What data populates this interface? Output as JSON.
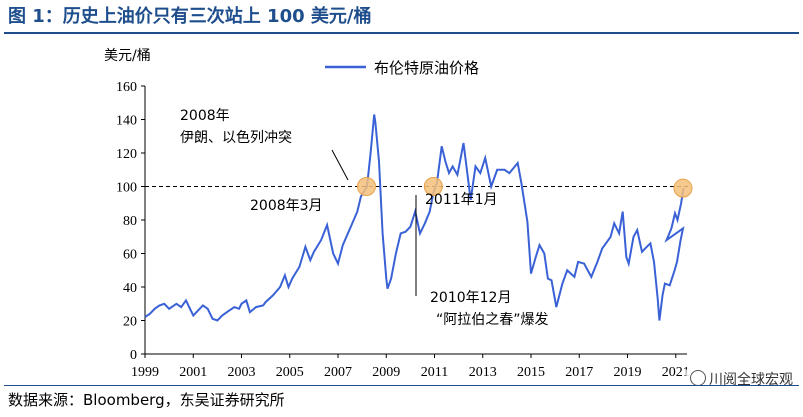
{
  "figure": {
    "title": "图 1：历史上油价只有三次站上 100 美元/桶",
    "source": "数据来源：Bloomberg，东吴证券研究所",
    "watermark": "川阅全球宏观"
  },
  "chart_data": {
    "type": "line",
    "ylabel": "美元/桶",
    "ylim": [
      0,
      160
    ],
    "yticks": [
      0,
      20,
      40,
      60,
      80,
      100,
      120,
      140,
      160
    ],
    "xlim": [
      1999,
      2021.3
    ],
    "xticks": [
      1999,
      2001,
      2003,
      2005,
      2007,
      2009,
      2011,
      2013,
      2015,
      2017,
      2019,
      2021
    ],
    "xtick_labels": [
      "1999",
      "2001",
      "2003",
      "2005",
      "2007",
      "2009",
      "2011",
      "2013",
      "2015",
      "2017",
      "2019",
      "2021"
    ],
    "grid": false,
    "legend": "top-center",
    "reference_line": {
      "y": 100,
      "style": "dashed"
    },
    "series": [
      {
        "name": "布伦特原油价格",
        "color": "#3a62d6",
        "points": [
          [
            1999.0,
            22
          ],
          [
            1999.2,
            24
          ],
          [
            1999.4,
            27
          ],
          [
            1999.6,
            29
          ],
          [
            1999.8,
            30
          ],
          [
            2000.0,
            27
          ],
          [
            2000.3,
            30
          ],
          [
            2000.5,
            28
          ],
          [
            2000.7,
            32
          ],
          [
            2000.9,
            26
          ],
          [
            2001.0,
            23
          ],
          [
            2001.2,
            26
          ],
          [
            2001.4,
            29
          ],
          [
            2001.6,
            27
          ],
          [
            2001.8,
            21
          ],
          [
            2002.0,
            20
          ],
          [
            2002.2,
            23
          ],
          [
            2002.4,
            25
          ],
          [
            2002.7,
            28
          ],
          [
            2002.9,
            27
          ],
          [
            2003.0,
            30
          ],
          [
            2003.2,
            32
          ],
          [
            2003.35,
            25
          ],
          [
            2003.6,
            28
          ],
          [
            2003.9,
            29
          ],
          [
            2004.0,
            31
          ],
          [
            2004.3,
            35
          ],
          [
            2004.6,
            40
          ],
          [
            2004.8,
            47
          ],
          [
            2004.95,
            40
          ],
          [
            2005.1,
            45
          ],
          [
            2005.4,
            52
          ],
          [
            2005.65,
            64
          ],
          [
            2005.85,
            56
          ],
          [
            2006.0,
            61
          ],
          [
            2006.3,
            68
          ],
          [
            2006.55,
            77
          ],
          [
            2006.8,
            60
          ],
          [
            2007.0,
            54
          ],
          [
            2007.2,
            65
          ],
          [
            2007.5,
            75
          ],
          [
            2007.8,
            85
          ],
          [
            2007.95,
            94
          ],
          [
            2008.2,
            100
          ],
          [
            2008.35,
            120
          ],
          [
            2008.5,
            143
          ],
          [
            2008.55,
            138
          ],
          [
            2008.7,
            115
          ],
          [
            2008.85,
            72
          ],
          [
            2009.0,
            45
          ],
          [
            2009.05,
            39
          ],
          [
            2009.2,
            45
          ],
          [
            2009.4,
            60
          ],
          [
            2009.6,
            72
          ],
          [
            2009.8,
            73
          ],
          [
            2010.0,
            76
          ],
          [
            2010.2,
            85
          ],
          [
            2010.4,
            72
          ],
          [
            2010.6,
            78
          ],
          [
            2010.8,
            85
          ],
          [
            2010.95,
            96
          ],
          [
            2011.1,
            102
          ],
          [
            2011.3,
            124
          ],
          [
            2011.45,
            115
          ],
          [
            2011.6,
            108
          ],
          [
            2011.75,
            112
          ],
          [
            2011.95,
            107
          ],
          [
            2012.1,
            118
          ],
          [
            2012.2,
            126
          ],
          [
            2012.5,
            92
          ],
          [
            2012.7,
            112
          ],
          [
            2012.9,
            108
          ],
          [
            2013.1,
            117
          ],
          [
            2013.35,
            100
          ],
          [
            2013.6,
            110
          ],
          [
            2013.9,
            110
          ],
          [
            2014.1,
            108
          ],
          [
            2014.45,
            114
          ],
          [
            2014.6,
            102
          ],
          [
            2014.85,
            79
          ],
          [
            2015.0,
            48
          ],
          [
            2015.2,
            58
          ],
          [
            2015.35,
            65
          ],
          [
            2015.55,
            60
          ],
          [
            2015.7,
            45
          ],
          [
            2015.85,
            44
          ],
          [
            2016.05,
            28
          ],
          [
            2016.3,
            42
          ],
          [
            2016.5,
            50
          ],
          [
            2016.8,
            46
          ],
          [
            2016.95,
            55
          ],
          [
            2017.2,
            54
          ],
          [
            2017.5,
            46
          ],
          [
            2017.75,
            55
          ],
          [
            2017.95,
            63
          ],
          [
            2018.3,
            70
          ],
          [
            2018.45,
            78
          ],
          [
            2018.65,
            72
          ],
          [
            2018.8,
            85
          ],
          [
            2018.95,
            58
          ],
          [
            2019.05,
            54
          ],
          [
            2019.25,
            70
          ],
          [
            2019.4,
            74
          ],
          [
            2019.6,
            61
          ],
          [
            2019.8,
            64
          ],
          [
            2019.95,
            66
          ],
          [
            2020.1,
            55
          ],
          [
            2020.25,
            33
          ],
          [
            2020.32,
            20
          ],
          [
            2020.45,
            35
          ],
          [
            2020.55,
            42
          ],
          [
            2020.75,
            41
          ],
          [
            2020.95,
            50
          ],
          [
            2021.05,
            55
          ],
          [
            2021.2,
            68
          ],
          [
            2021.3,
            75
          ],
          [
            2021.4,
            68
          ],
          [
            2021.6,
            75
          ],
          [
            2021.75,
            84
          ],
          [
            2021.85,
            80
          ],
          [
            2022.0,
            90
          ],
          [
            2022.1,
            99
          ]
        ]
      }
    ],
    "highlights": [
      {
        "x": 2008.18,
        "y": 100
      },
      {
        "x": 2010.95,
        "y": 100
      },
      {
        "x": 2022.08,
        "y": 99
      }
    ],
    "annotations": [
      {
        "line1": "2008年",
        "line2": "伊朗、以色列冲突"
      },
      {
        "line1": "2008年3月"
      },
      {
        "line1": "2011年1月"
      },
      {
        "line1": "2010年12月",
        "line2": "“阿拉伯之春”爆发"
      }
    ]
  }
}
